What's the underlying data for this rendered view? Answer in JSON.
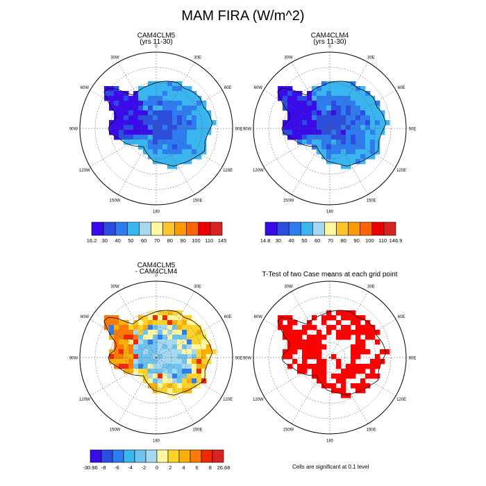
{
  "page": {
    "title": "MAM FIRA (W/m^2)"
  },
  "panels": [
    {
      "title_line1": "CAM4CLM5",
      "title_line2": "(yrs 11-30)"
    },
    {
      "title_line1": "CAM4CLM4",
      "title_line2": "(yrs 11-30)"
    },
    {
      "title_line1": "CAM4CLM5",
      "title_line2": "- CAM4CLM4"
    },
    {
      "title_line1": "T-Test of two Case means at each grid point",
      "title_line2": ""
    }
  ],
  "note": "Cells are significant at 0.1 level",
  "chart_data": [
    {
      "type": "heatmap",
      "projection": "south-polar-stereographic",
      "title": "CAM4CLM5 (yrs 11-30)",
      "lon_labels": [
        "0",
        "30E",
        "60E",
        "90E",
        "120E",
        "150E",
        "180",
        "150W",
        "120W",
        "90W",
        "60W",
        "30W"
      ],
      "colorbar": {
        "labels": [
          "16.2",
          "30",
          "40",
          "50",
          "60",
          "70",
          "80",
          "90",
          "100",
          "110",
          "145"
        ],
        "colors": [
          "#3a0aeb",
          "#2c4ee0",
          "#2f7cf0",
          "#3ab5ef",
          "#a6d8f2",
          "#fff7a0",
          "#fbc62b",
          "#fb9a08",
          "#fb6508",
          "#ef0000",
          "#d92323"
        ]
      }
    },
    {
      "type": "heatmap",
      "projection": "south-polar-stereographic",
      "title": "CAM4CLM4 (yrs 11-30)",
      "lon_labels": [
        "0",
        "30E",
        "60E",
        "90E",
        "120E",
        "150E",
        "180",
        "150W",
        "120W",
        "90W",
        "60W",
        "30W"
      ],
      "colorbar": {
        "labels": [
          "14.8",
          "30",
          "40",
          "50",
          "60",
          "70",
          "80",
          "90",
          "100",
          "110",
          "146.9"
        ],
        "colors": [
          "#3a0aeb",
          "#2c4ee0",
          "#2f7cf0",
          "#3ab5ef",
          "#a6d8f2",
          "#fff7a0",
          "#fbc62b",
          "#fb9a08",
          "#fb6508",
          "#ef0000",
          "#d92323"
        ]
      }
    },
    {
      "type": "heatmap",
      "projection": "south-polar-stereographic",
      "title": "CAM4CLM5 - CAM4CLM4",
      "lon_labels": [
        "0",
        "30E",
        "60E",
        "90E",
        "120E",
        "150E",
        "180",
        "150W",
        "120W",
        "90W",
        "60W",
        "30W"
      ],
      "colorbar": {
        "labels": [
          "-30.96",
          "-8",
          "-6",
          "-4",
          "-2",
          "0",
          "2",
          "4",
          "6",
          "8",
          "26.68"
        ],
        "colors": [
          "#3a0aeb",
          "#2c4ee0",
          "#2f7cf0",
          "#3ab5ef",
          "#6fc3ef",
          "#a6d8f2",
          "#fff7a0",
          "#fbd42b",
          "#fbb008",
          "#fb7a08",
          "#ef2a00",
          "#d92323"
        ]
      }
    },
    {
      "type": "heatmap",
      "projection": "south-polar-stereographic",
      "title": "T-Test of two Case means at each grid point",
      "lon_labels": [
        "0",
        "30E",
        "60E",
        "90E",
        "120E",
        "150E",
        "180",
        "150W",
        "120W",
        "90W",
        "60W",
        "30W"
      ],
      "significance_color": "#ff0000"
    }
  ]
}
